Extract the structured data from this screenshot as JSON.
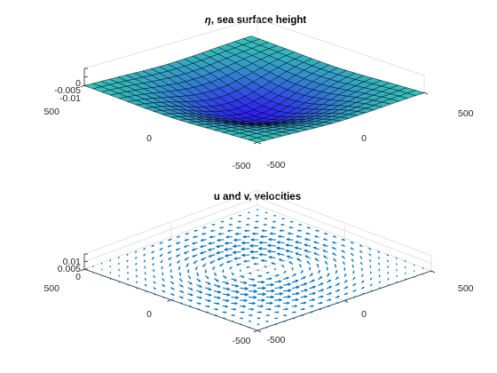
{
  "chart_data": [
    {
      "type": "surface",
      "title": "η, sea surface height",
      "title_symbol": "η",
      "title_rest": ", sea surface height",
      "x_ticks": [
        "-500",
        "0",
        "500"
      ],
      "y_ticks": [
        "500",
        "0",
        "-500"
      ],
      "z_ticks": [
        "0",
        "-0.005",
        "-0.01"
      ],
      "xlim": [
        -500,
        500
      ],
      "ylim": [
        -500,
        500
      ],
      "zlim": [
        -0.01,
        0
      ],
      "grid_n": 20,
      "eta_min": -0.0085,
      "eta_sigma": 250,
      "colors": {
        "high": "#35c4b8",
        "low": "#2d1ff2",
        "edges": "#000000"
      }
    },
    {
      "type": "quiver",
      "title": "u and v, velocities",
      "x_ticks": [
        "-500",
        "0",
        "500"
      ],
      "y_ticks": [
        "500",
        "0",
        "-500"
      ],
      "z_ticks": [
        "0.01",
        "0.005",
        "0"
      ],
      "xlim": [
        -500,
        500
      ],
      "ylim": [
        -500,
        500
      ],
      "zlim": [
        0,
        0.01
      ],
      "grid_n": 20,
      "flow": "circular, centered at (0, 0)",
      "grid": true,
      "colors": {
        "arrows": "#0072bd",
        "grid": "#dcdcdc"
      }
    }
  ]
}
